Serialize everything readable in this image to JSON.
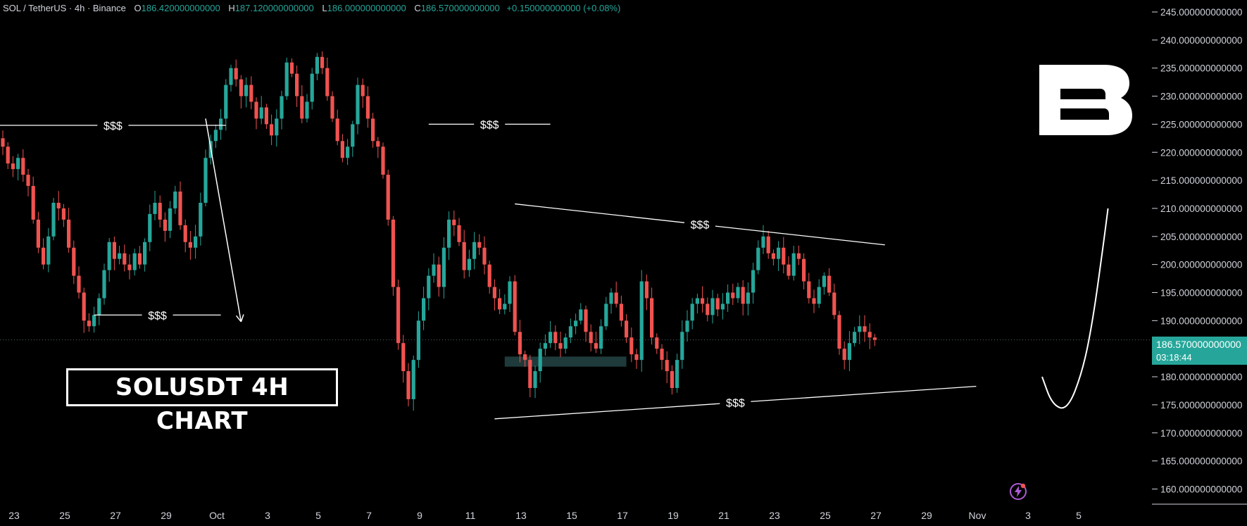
{
  "legend": {
    "symbol": "SOL / TetherUS · 4h · Binance",
    "open_label": "O",
    "open": "186.420000000000",
    "high_label": "H",
    "high": "187.120000000000",
    "low_label": "L",
    "low": "186.000000000000",
    "close_label": "C",
    "close": "186.570000000000",
    "change": "+0.150000000000 (+0.08%)"
  },
  "price_tag": {
    "price": "186.570000000000",
    "countdown": "03:18:44"
  },
  "title_box": "SOLUSDT 4H CHART",
  "annotation_label": "$$$",
  "colors": {
    "up": "#26a69a",
    "down": "#ef5350",
    "background": "#000000",
    "zone": "#1f3a3a"
  },
  "icons": {
    "logo": "brand-b-logo",
    "bolt": "lightning-icon"
  },
  "chart_data": {
    "type": "candlestick",
    "ylim": [
      157.5,
      247
    ],
    "y_ticks": [
      "245.000000000000",
      "240.000000000000",
      "235.000000000000",
      "230.000000000000",
      "225.000000000000",
      "220.000000000000",
      "215.000000000000",
      "210.000000000000",
      "205.000000000000",
      "200.000000000000",
      "195.000000000000",
      "190.000000000000",
      "185.000000000000",
      "180.000000000000",
      "175.000000000000",
      "170.000000000000",
      "165.000000000000",
      "160.000000000000"
    ],
    "x_ticks": [
      "23",
      "25",
      "27",
      "29",
      "Oct",
      "3",
      "5",
      "7",
      "9",
      "11",
      "13",
      "15",
      "17",
      "19",
      "21",
      "23",
      "25",
      "27",
      "29",
      "Nov",
      "3",
      "5"
    ],
    "current_price": 186.57,
    "series_close": [
      221,
      218,
      217,
      219,
      216,
      214,
      208,
      203,
      200,
      205,
      211,
      210,
      208,
      203,
      198,
      195,
      190,
      189,
      191,
      194,
      199,
      204,
      201,
      202,
      200,
      199,
      202,
      200,
      204,
      209,
      211,
      208,
      206,
      210,
      213,
      207,
      204,
      203,
      205,
      211,
      219,
      222,
      224,
      226,
      232,
      235,
      233,
      230,
      232,
      229,
      226,
      228,
      225,
      223,
      226,
      230,
      236,
      234,
      230,
      226,
      229,
      234,
      237,
      235,
      230,
      226,
      222,
      219,
      221,
      225,
      232,
      230,
      226,
      222,
      221,
      216,
      208,
      196,
      186,
      181,
      176,
      183,
      190,
      194,
      198,
      200,
      196,
      203,
      208,
      207,
      204,
      199,
      201,
      204,
      203,
      200,
      196,
      194,
      192,
      193,
      197,
      188,
      184,
      183,
      178,
      181,
      185,
      186,
      188,
      186,
      185,
      187,
      189,
      190,
      192,
      188,
      186,
      185,
      189,
      193,
      195,
      193,
      190,
      187,
      184,
      183,
      197,
      194,
      187,
      185,
      183,
      181,
      178,
      183,
      188,
      190,
      193,
      194,
      193,
      191,
      194,
      192,
      193,
      195,
      194,
      196,
      193,
      195,
      199,
      203,
      205,
      202,
      201,
      203,
      200,
      198,
      202,
      201,
      197,
      194,
      193,
      196,
      198,
      195,
      191,
      185,
      183,
      186,
      188,
      189,
      188,
      187,
      186.57
    ],
    "annotations": [
      {
        "kind": "level",
        "from": 0,
        "to": 44,
        "price": 224.8,
        "label": "$$$"
      },
      {
        "kind": "arrow",
        "from": 40,
        "price_from": 226,
        "to": 47,
        "price_to": 189.8
      },
      {
        "kind": "level",
        "from": 18,
        "to": 43,
        "price": 191,
        "label": "$$$"
      },
      {
        "kind": "level",
        "from": 84,
        "to": 108,
        "price": 225,
        "label": "$$$"
      },
      {
        "kind": "trendline",
        "from": 101,
        "price_from": 210.8,
        "to": 174,
        "price_to": 203.5,
        "label": "$$$"
      },
      {
        "kind": "trendline",
        "from": 97,
        "price_from": 172.5,
        "to": 192,
        "price_to": 178.3,
        "label": "$$$"
      },
      {
        "kind": "zone",
        "from": 99,
        "to": 123,
        "price_top": 183.6,
        "price_bottom": 181.8
      },
      {
        "kind": "projection",
        "points": [
          [
            205,
            180
          ],
          [
            207,
            175
          ],
          [
            210,
            174
          ],
          [
            213,
            181
          ],
          [
            215,
            190
          ],
          [
            217,
            203
          ],
          [
            218,
            210
          ]
        ]
      }
    ]
  }
}
